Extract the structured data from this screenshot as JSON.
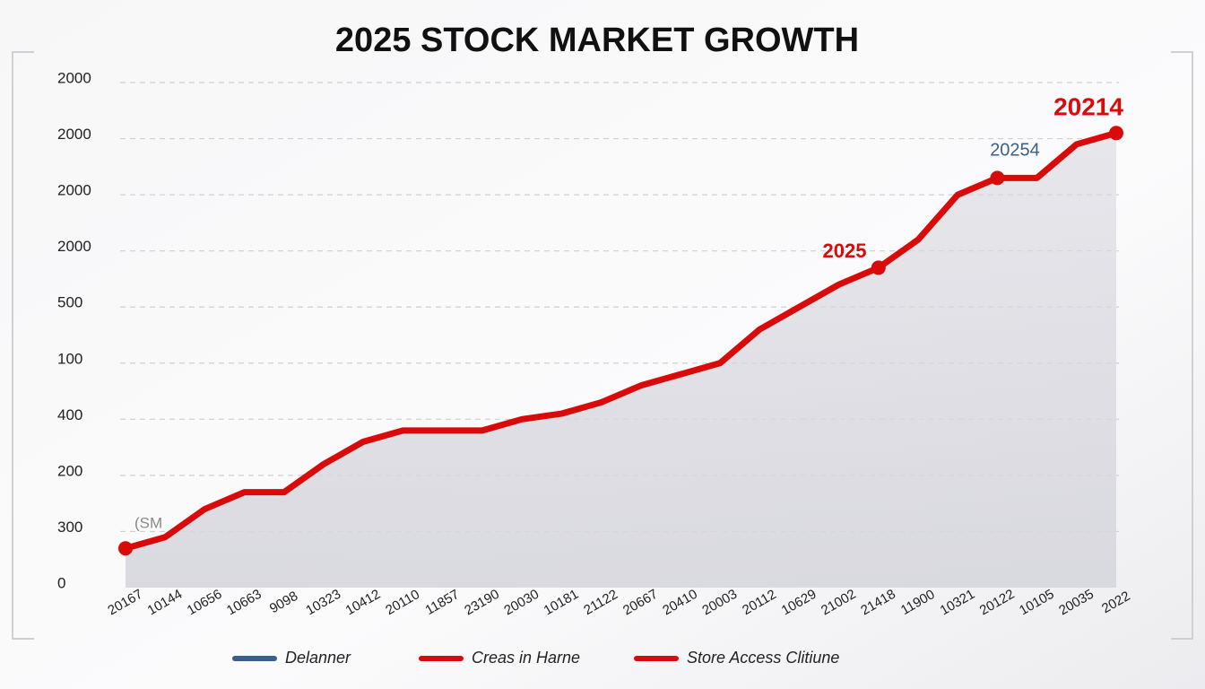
{
  "chart_data": {
    "type": "line",
    "title": "2025 STOCK MARKET GROWTH",
    "categories": [
      "20167",
      "10144",
      "10656",
      "10663",
      "9098",
      "10323",
      "10412",
      "20110",
      "11857",
      "23190",
      "20030",
      "10181",
      "21122",
      "20667",
      "20410",
      "20003",
      "20112",
      "10629",
      "21002",
      "21418",
      "11900",
      "10321",
      "20122",
      "10105",
      "20035",
      "2022"
    ],
    "series": [
      {
        "color": "#d90a0a",
        "values": [
          0.7,
          0.9,
          1.4,
          1.7,
          1.7,
          2.2,
          2.6,
          2.8,
          2.8,
          2.8,
          3.0,
          3.1,
          3.3,
          3.6,
          3.8,
          4.0,
          4.6,
          5.0,
          5.4,
          5.7,
          6.2,
          7.0,
          7.3,
          7.3,
          7.9,
          8.1
        ]
      }
    ],
    "ylim": [
      0,
      9
    ],
    "yticks": [
      {
        "value": 0,
        "label": "0"
      },
      {
        "value": 1,
        "label": "300"
      },
      {
        "value": 2,
        "label": "200"
      },
      {
        "value": 3,
        "label": "400"
      },
      {
        "value": 4,
        "label": "100"
      },
      {
        "value": 5,
        "label": "500"
      },
      {
        "value": 6,
        "label": "2000"
      },
      {
        "value": 7,
        "label": "2000"
      },
      {
        "value": 8,
        "label": "2000"
      },
      {
        "value": 9,
        "label": "2000"
      }
    ],
    "grid": true,
    "annotations": [
      {
        "text": "(SM",
        "color": "#888888"
      },
      {
        "text": "2025",
        "color": "#d90a0a"
      },
      {
        "text": "20254",
        "color": "#3a5f8a"
      },
      {
        "text": "20214",
        "color": "#d90a0a"
      }
    ],
    "legend": [
      {
        "name": "Delanner",
        "color": "#3a5f8a"
      },
      {
        "name": "Creas in Harne",
        "color": "#d90a0a"
      },
      {
        "name": "Store Access Clitiune",
        "color": "#d90a0a"
      }
    ]
  }
}
